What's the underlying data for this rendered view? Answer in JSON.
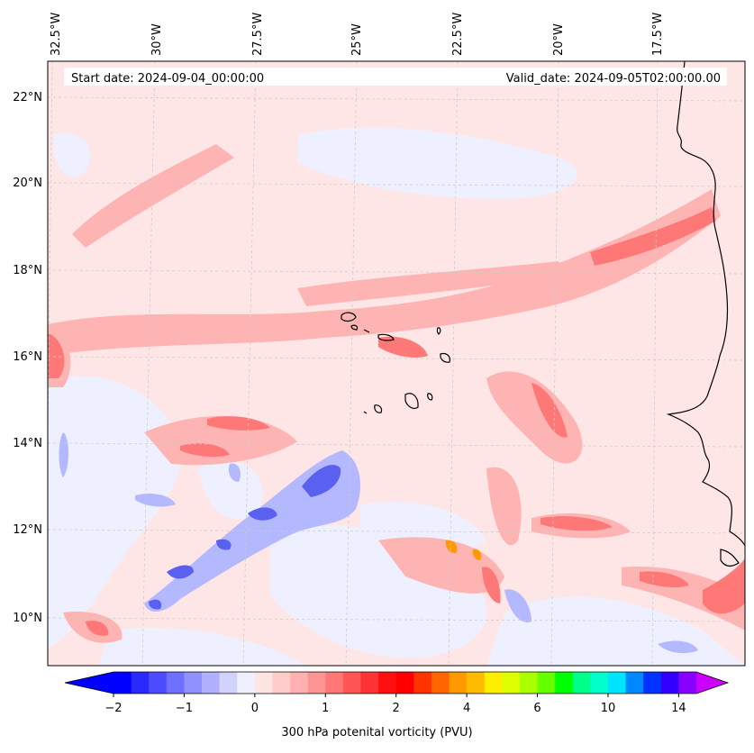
{
  "header": {
    "start_date": "Start date: 2024-09-04_00:00:00",
    "valid_date": "Valid_date: 2024-09-05T02:00:00.00"
  },
  "map": {
    "lon_labels": [
      "32.5°W",
      "30°W",
      "27.5°W",
      "25°W",
      "22.5°W",
      "20°W",
      "17.5°W"
    ],
    "lat_labels": [
      "22°N",
      "20°N",
      "18°N",
      "16°N",
      "14°N",
      "12°N",
      "10°N"
    ],
    "colors": {
      "neg_light": "#eef0ff",
      "neg_mid": "#b4b8ff",
      "neg_strong": "#5a60f0",
      "pos_light": "#ffe6e6",
      "pos_mid": "#ffb4b4",
      "pos_strong": "#ff7878",
      "pos_peak": "#ee4040",
      "orange": "#ff9900"
    }
  },
  "colorbar": {
    "label": "300 hPa potenital vorticity (PVU)",
    "tick_labels": [
      "−2",
      "−1",
      "0",
      "1",
      "2",
      "4",
      "6",
      "10",
      "14"
    ],
    "colors": [
      "#0000ff",
      "#2a2aff",
      "#4d4dff",
      "#7070ff",
      "#9090ff",
      "#b0b0ff",
      "#d2d2ff",
      "#efefff",
      "#ffe4e4",
      "#ffcccc",
      "#ffb0b0",
      "#ff9494",
      "#ff7777",
      "#ff5555",
      "#ff3333",
      "#ff1010",
      "#ff0000",
      "#ff3300",
      "#ff6600",
      "#ff9900",
      "#ffbb00",
      "#ffee00",
      "#ddff00",
      "#aaff00",
      "#66ff00",
      "#00ff00",
      "#00ff88",
      "#00ffcc",
      "#00e5ff",
      "#0088ff",
      "#0033ff",
      "#3300ff",
      "#8800ff"
    ],
    "under_color": "#0000ff",
    "over_color": "#cc00ff"
  }
}
